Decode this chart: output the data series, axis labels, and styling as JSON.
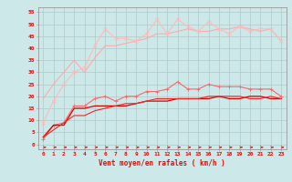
{
  "background_color": "#cce8e8",
  "grid_color": "#b0c8c8",
  "x_values": [
    0,
    1,
    2,
    3,
    4,
    5,
    6,
    7,
    8,
    9,
    10,
    11,
    12,
    13,
    14,
    15,
    16,
    17,
    18,
    19,
    20,
    21,
    22,
    23
  ],
  "xlabel": "Vent moyen/en rafales ( km/h )",
  "yticks": [
    0,
    5,
    10,
    15,
    20,
    25,
    30,
    35,
    40,
    45,
    50,
    55
  ],
  "ylim": [
    -2,
    57
  ],
  "xlim": [
    -0.5,
    23.5
  ],
  "line1_color": "#ffaaaa",
  "line1_y": [
    19,
    25,
    30,
    35,
    30,
    36,
    41,
    41,
    42,
    43,
    44,
    46,
    46,
    47,
    48,
    47,
    47,
    48,
    48,
    49,
    48,
    47,
    48,
    43
  ],
  "line2_color": "#ffbbbb",
  "line2_y": [
    9,
    18,
    25,
    30,
    32,
    41,
    48,
    44,
    44,
    43,
    46,
    52,
    46,
    52,
    49,
    47,
    51,
    48,
    46,
    49,
    47,
    48,
    48,
    43
  ],
  "line3_color": "#ff6666",
  "line3_y": [
    2,
    8,
    9,
    16,
    16,
    19,
    20,
    18,
    20,
    20,
    22,
    22,
    23,
    26,
    23,
    23,
    25,
    24,
    24,
    24,
    23,
    23,
    23,
    20
  ],
  "line4_color": "#dd0000",
  "line4_y": [
    3,
    8,
    8,
    15,
    15,
    16,
    16,
    16,
    16,
    17,
    18,
    18,
    18,
    19,
    19,
    19,
    19,
    20,
    19,
    19,
    20,
    20,
    19,
    19
  ],
  "line5_color": "#ff2222",
  "line5_y": [
    3,
    6,
    9,
    12,
    12,
    14,
    15,
    16,
    17,
    17,
    18,
    19,
    19,
    19,
    19,
    19,
    20,
    20,
    20,
    20,
    19,
    19,
    20,
    19
  ],
  "arrow_color": "#cc0000"
}
